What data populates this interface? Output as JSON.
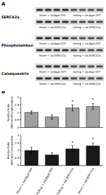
{
  "panel_labels": [
    "A",
    "B"
  ],
  "blots": [
    {
      "protein": "SERCA2a",
      "rows": [
        [
          "Sham + Ad.βgal-GFP",
          "Failing + Ad.βgal-GFP"
        ],
        [
          "Sham + Ad.SERCA2a",
          "Failing + Ad.SERCA2a"
        ]
      ]
    },
    {
      "protein": "Phospholamban",
      "rows": [
        [
          "Sham + Ad.βgal-GFP",
          "Failing + Ad.βgal-GFP"
        ],
        [
          "Sham + Ad.SERCA2a",
          "Failing + Ad.SERCA2a"
        ]
      ]
    },
    {
      "protein": "Calsequestrin",
      "rows": [
        [
          "Sham + Ad.βgal-GFP",
          "Failing + Ad.βgal-GFP"
        ],
        [
          "Sham + Ad.SERCA2a",
          "Failing + Ad.SERCA2a"
        ]
      ]
    }
  ],
  "chart_data": [
    {
      "type": "bar",
      "ylabel_lines": [
        "Relative Ratio",
        "SERCA2a/Phospholamban"
      ],
      "categories": [
        "Sham + Ad.βgal-GFP",
        "Failing + Ad.βgal-GFP",
        "Failing + Ad.SERCA2a",
        "Sham + Ad.SERCA2a"
      ],
      "values": [
        1.0,
        0.7,
        1.3,
        1.4
      ],
      "errors": [
        0.1,
        0.15,
        0.2,
        0.2
      ],
      "color": "#a0a0a0",
      "ylim": [
        0,
        2
      ],
      "yticks": [
        0,
        0.5,
        1,
        1.5,
        2
      ],
      "tick_labels": "y",
      "annotations": [
        {
          "category": "Failing + Ad.SERCA2a",
          "text": "*"
        },
        {
          "category": "Sham + Ad.SERCA2a",
          "text": "*"
        }
      ]
    },
    {
      "type": "bar",
      "ylabel_lines": [
        "Relative Ratio",
        "SERCA2a/Calsequestrin"
      ],
      "categories": [
        "Sham + Ad.βgal-GFP",
        "Failing + Ad.βgal-GFP",
        "Failing + Ad.SERCA2a",
        "Sham + Ad.SERCA2a"
      ],
      "values": [
        1.0,
        0.7,
        1.1,
        1.3
      ],
      "errors": [
        0.2,
        0.15,
        0.2,
        0.2
      ],
      "color": "#1a1a1a",
      "ylim": [
        0,
        2
      ],
      "yticks": [
        0,
        0.5,
        1,
        1.5,
        2
      ],
      "annotations": [
        {
          "category": "Failing + Ad.SERCA2a",
          "text": "*"
        },
        {
          "category": "Sham + Ad.SERCA2a",
          "text": "*"
        }
      ]
    }
  ]
}
